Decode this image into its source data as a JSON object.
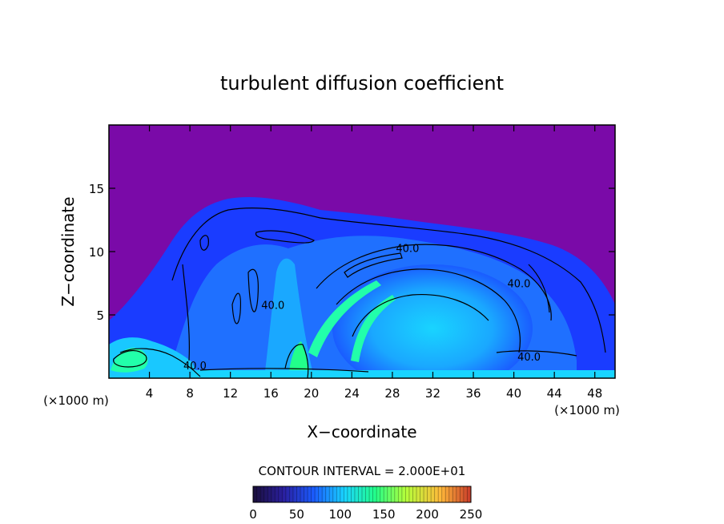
{
  "chart_data": {
    "type": "heatmap",
    "title": "turbulent diffusion coefficient",
    "xlabel": "X−coordinate",
    "ylabel": "Z−coordinate",
    "x_unit": "(×1000 m)",
    "y_unit": "(×1000 m)",
    "xlim": [
      0,
      50
    ],
    "ylim": [
      0,
      20
    ],
    "x_ticks": [
      4,
      8,
      12,
      16,
      20,
      24,
      28,
      32,
      36,
      40,
      44,
      48
    ],
    "y_ticks": [
      5,
      10,
      15
    ],
    "contour_interval_text": "CONTOUR INTERVAL = 2.000E+01",
    "contour_labels": [
      {
        "text": "40.0",
        "x": 29.5,
        "z": 10.3
      },
      {
        "text": "40.0",
        "x": 16.2,
        "z": 5.8
      },
      {
        "text": "40.0",
        "x": 40.5,
        "z": 7.5
      },
      {
        "text": "40.0",
        "x": 41.5,
        "z": 1.7
      },
      {
        "text": "40.0",
        "x": 8.5,
        "z": 1.0
      }
    ],
    "colorbar": {
      "min": 0,
      "max": 250,
      "tick_labels": [
        "0",
        "50",
        "100",
        "150",
        "200",
        "250"
      ],
      "colors": [
        "#1a0f3a",
        "#2a1fa0",
        "#1a5cff",
        "#19d4ff",
        "#22ff8a",
        "#b4ff3a",
        "#ffb93a",
        "#c83a2a"
      ]
    },
    "colors": {
      "background_field": "#7a0aa8",
      "low": "#1a3cff",
      "mid": "#1abaff",
      "high": "#22ffaa",
      "contour": "#000000"
    }
  }
}
